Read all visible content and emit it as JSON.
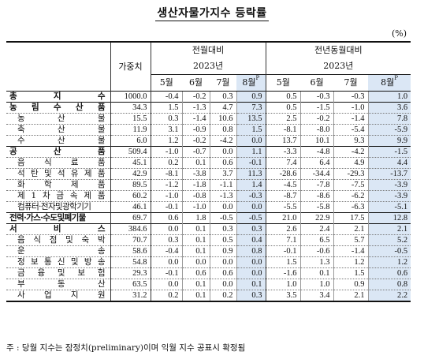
{
  "title": "생산자물가지수 등락률",
  "unit": "(%)",
  "headers": {
    "weight": "가중치",
    "mom": "전월대비",
    "yoy": "전년동월대비",
    "year": "2023년",
    "months": [
      "5월",
      "6월",
      "7월",
      "8월"
    ],
    "prelim_mark": "P"
  },
  "rows": [
    {
      "label": "총 지 수",
      "weight": "1000.0",
      "mom": [
        "-0.4",
        "-0.2",
        "0.3",
        "0.9"
      ],
      "yoy": [
        "0.5",
        "-0.3",
        "-0.3",
        "1.0"
      ],
      "bold": true
    },
    {
      "label": "농 림 수 산 품",
      "weight": "34.3",
      "mom": [
        "1.5",
        "-1.3",
        "4.7",
        "7.3"
      ],
      "yoy": [
        "0.5",
        "-1.5",
        "-1.0",
        "3.6"
      ],
      "bold": true
    },
    {
      "label": "농 산 물",
      "weight": "15.5",
      "mom": [
        "0.3",
        "-1.4",
        "10.6",
        "13.5"
      ],
      "yoy": [
        "2.5",
        "-0.2",
        "-1.4",
        "7.8"
      ],
      "sub": true
    },
    {
      "label": "축 산 물",
      "weight": "11.9",
      "mom": [
        "3.1",
        "-0.9",
        "0.8",
        "1.5"
      ],
      "yoy": [
        "-8.1",
        "-8.0",
        "-5.4",
        "-5.9"
      ],
      "sub": true
    },
    {
      "label": "수 산 물",
      "weight": "6.0",
      "mom": [
        "1.2",
        "-0.2",
        "-4.2",
        "0.0"
      ],
      "yoy": [
        "13.7",
        "10.1",
        "9.3",
        "9.9"
      ],
      "sub": true
    },
    {
      "label": "공 산 품",
      "weight": "509.4",
      "mom": [
        "-1.0",
        "-0.7",
        "0.0",
        "1.1"
      ],
      "yoy": [
        "-3.3",
        "-4.8",
        "-4.2",
        "-1.5"
      ],
      "bold": true
    },
    {
      "label": "음 식 료 품",
      "weight": "45.1",
      "mom": [
        "0.2",
        "0.1",
        "0.6",
        "-0.1"
      ],
      "yoy": [
        "7.4",
        "6.4",
        "4.9",
        "4.4"
      ],
      "sub": true
    },
    {
      "label": "석 탄 및 석 유 제 품",
      "weight": "42.9",
      "mom": [
        "-8.1",
        "-3.8",
        "3.7",
        "11.3"
      ],
      "yoy": [
        "-28.6",
        "-34.4",
        "-29.3",
        "-13.7"
      ],
      "sub": true
    },
    {
      "label": "화 학 제 품",
      "weight": "89.5",
      "mom": [
        "-1.2",
        "-1.8",
        "-1.1",
        "1.4"
      ],
      "yoy": [
        "-4.5",
        "-7.8",
        "-7.5",
        "-3.9"
      ],
      "sub": true
    },
    {
      "label": "제 1 차 금 속 제 품",
      "weight": "60.2",
      "mom": [
        "-1.0",
        "-0.8",
        "-1.3",
        "-0.3"
      ],
      "yoy": [
        "-8.7",
        "-8.6",
        "-6.2",
        "-3.9"
      ],
      "sub": true
    },
    {
      "label": "컴퓨터·전자및광학기기",
      "weight": "46.1",
      "mom": [
        "-0.1",
        "-1.0",
        "0.0",
        "0.0"
      ],
      "yoy": [
        "-5.5",
        "-5.8",
        "-6.3",
        "-5.1"
      ],
      "sub": true,
      "tight": true
    },
    {
      "label": "전력·가스·수도및폐기물",
      "weight": "69.7",
      "mom": [
        "0.6",
        "1.8",
        "-0.5",
        "-0.5"
      ],
      "yoy": [
        "21.0",
        "22.9",
        "17.5",
        "12.8"
      ],
      "bold": true,
      "tight": true
    },
    {
      "label": "서 비 스",
      "weight": "384.6",
      "mom": [
        "0.0",
        "0.1",
        "0.3",
        "0.3"
      ],
      "yoy": [
        "2.6",
        "2.4",
        "2.1",
        "2.1"
      ],
      "bold": true
    },
    {
      "label": "음 식 점 및 숙 박",
      "weight": "70.7",
      "mom": [
        "0.3",
        "0.1",
        "0.5",
        "0.4"
      ],
      "yoy": [
        "7.1",
        "6.5",
        "5.7",
        "5.2"
      ],
      "sub": true
    },
    {
      "label": "운 송",
      "weight": "58.6",
      "mom": [
        "-0.4",
        "0.1",
        "0.9",
        "0.8"
      ],
      "yoy": [
        "-0.1",
        "-0.6",
        "-1.4",
        "-0.5"
      ],
      "sub": true
    },
    {
      "label": "정 보 통 신 및 방 송",
      "weight": "54.8",
      "mom": [
        "0.0",
        "0.0",
        "0.0",
        "0.0"
      ],
      "yoy": [
        "1.5",
        "1.3",
        "1.2",
        "1.2"
      ],
      "sub": true
    },
    {
      "label": "금 융 및 보 험",
      "weight": "29.3",
      "mom": [
        "-0.1",
        "0.6",
        "0.6",
        "0.0"
      ],
      "yoy": [
        "-1.6",
        "0.1",
        "1.5",
        "0.6"
      ],
      "sub": true
    },
    {
      "label": "부 동 산",
      "weight": "63.5",
      "mom": [
        "0.0",
        "0.1",
        "0.0",
        "0.1"
      ],
      "yoy": [
        "1.0",
        "1.0",
        "0.9",
        "0.8"
      ],
      "sub": true
    },
    {
      "label": "사 업 지 원",
      "weight": "31.2",
      "mom": [
        "0.2",
        "0.1",
        "0.2",
        "0.3"
      ],
      "yoy": [
        "3.5",
        "3.4",
        "2.1",
        "2.2"
      ],
      "sub": true
    }
  ],
  "footnote": "주 : 당월 지수는 잠정치(preliminary)이며 익월 지수 공표시 확정됨"
}
